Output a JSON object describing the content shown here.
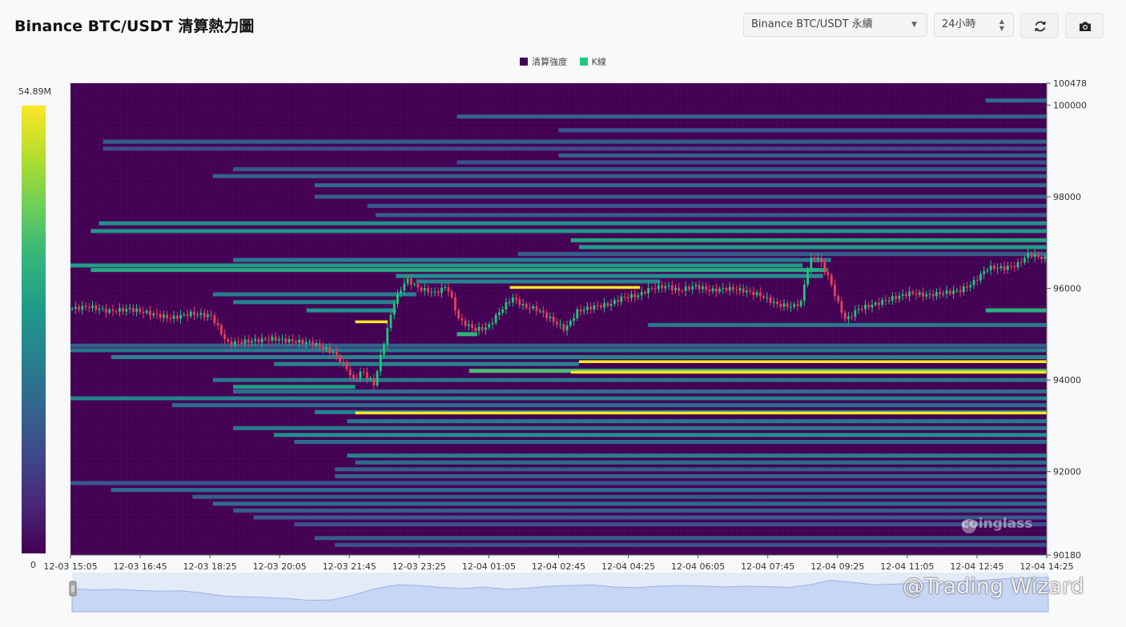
{
  "header": {
    "title": "Binance BTC/USDT 清算熱力圖",
    "symbol_select": "Binance BTC/USDT 永續",
    "range_select": "24小時",
    "refresh_icon": "refresh-icon",
    "camera_icon": "camera-icon"
  },
  "legend": [
    {
      "label": "清算強度",
      "color": "#440154"
    },
    {
      "label": "K線",
      "color": "#1fc87c"
    }
  ],
  "colorbar": {
    "max_label": "54.89M",
    "min_label": "0"
  },
  "watermarks": {
    "brand": "coinglass",
    "credit": "@Trading Wizard"
  },
  "chart_data": {
    "type": "heatmap",
    "y_axis": {
      "min": 90180,
      "max": 100478,
      "ticks": [
        100478,
        100000,
        98000,
        96000,
        94000,
        92000,
        90180
      ]
    },
    "x_ticks": [
      "12-03 15:05",
      "12-03 16:45",
      "12-03 18:25",
      "12-03 20:05",
      "12-03 21:45",
      "12-03 23:25",
      "12-04 01:05",
      "12-04 02:45",
      "12-04 04:25",
      "12-04 06:05",
      "12-04 07:45",
      "12-04 09:25",
      "12-04 11:05",
      "12-04 12:45",
      "12-04 14:25"
    ],
    "time_range_hours": [
      0,
      24
    ],
    "color_scale": {
      "min": 0,
      "max": 54890000,
      "palette": "viridis"
    },
    "bands": [
      {
        "price": 100100,
        "start_h": 22.5,
        "end_h": 24,
        "intensity": 0.35
      },
      {
        "price": 99750,
        "start_h": 9.5,
        "end_h": 24,
        "intensity": 0.32
      },
      {
        "price": 99450,
        "start_h": 12.0,
        "end_h": 24,
        "intensity": 0.28
      },
      {
        "price": 99200,
        "start_h": 0.8,
        "end_h": 24,
        "intensity": 0.3
      },
      {
        "price": 99050,
        "start_h": 0.8,
        "end_h": 24,
        "intensity": 0.24
      },
      {
        "price": 98900,
        "start_h": 12.0,
        "end_h": 24,
        "intensity": 0.3
      },
      {
        "price": 98750,
        "start_h": 9.5,
        "end_h": 24,
        "intensity": 0.25
      },
      {
        "price": 98600,
        "start_h": 4.0,
        "end_h": 24,
        "intensity": 0.28
      },
      {
        "price": 98450,
        "start_h": 3.5,
        "end_h": 24,
        "intensity": 0.32
      },
      {
        "price": 98250,
        "start_h": 6.0,
        "end_h": 24,
        "intensity": 0.35
      },
      {
        "price": 98000,
        "start_h": 6.0,
        "end_h": 24,
        "intensity": 0.3
      },
      {
        "price": 97800,
        "start_h": 7.3,
        "end_h": 24,
        "intensity": 0.28
      },
      {
        "price": 97600,
        "start_h": 7.5,
        "end_h": 24,
        "intensity": 0.3
      },
      {
        "price": 97420,
        "start_h": 0.7,
        "end_h": 24,
        "intensity": 0.5
      },
      {
        "price": 97250,
        "start_h": 0.5,
        "end_h": 24,
        "intensity": 0.52
      },
      {
        "price": 97050,
        "start_h": 12.3,
        "end_h": 24,
        "intensity": 0.58
      },
      {
        "price": 96900,
        "start_h": 12.5,
        "end_h": 24,
        "intensity": 0.55
      },
      {
        "price": 96750,
        "start_h": 11.0,
        "end_h": 24,
        "intensity": 0.3
      },
      {
        "price": 96620,
        "start_h": 4.0,
        "end_h": 18.7,
        "intensity": 0.42
      },
      {
        "price": 96500,
        "start_h": 0.0,
        "end_h": 18.0,
        "intensity": 0.55
      },
      {
        "price": 96400,
        "start_h": 0.5,
        "end_h": 18.6,
        "intensity": 0.6
      },
      {
        "price": 96270,
        "start_h": 8.0,
        "end_h": 18.5,
        "intensity": 0.5
      },
      {
        "price": 96150,
        "start_h": 8.5,
        "end_h": 14.5,
        "intensity": 0.45
      },
      {
        "price": 96020,
        "start_h": 10.8,
        "end_h": 14.0,
        "intensity": 1.0
      },
      {
        "price": 95870,
        "start_h": 3.5,
        "end_h": 8.5,
        "intensity": 0.42
      },
      {
        "price": 95700,
        "start_h": 4.0,
        "end_h": 8.0,
        "intensity": 0.45
      },
      {
        "price": 95520,
        "start_h": 5.8,
        "end_h": 8.0,
        "intensity": 0.5
      },
      {
        "price": 95520,
        "start_h": 22.5,
        "end_h": 24,
        "intensity": 0.62
      },
      {
        "price": 95270,
        "start_h": 7.0,
        "end_h": 7.8,
        "intensity": 1.0
      },
      {
        "price": 95200,
        "start_h": 14.2,
        "end_h": 24,
        "intensity": 0.4
      },
      {
        "price": 95000,
        "start_h": 9.5,
        "end_h": 10.0,
        "intensity": 0.65
      },
      {
        "price": 94750,
        "start_h": 0.0,
        "end_h": 24,
        "intensity": 0.3
      },
      {
        "price": 94650,
        "start_h": 0.0,
        "end_h": 24,
        "intensity": 0.4
      },
      {
        "price": 94500,
        "start_h": 1.0,
        "end_h": 24,
        "intensity": 0.45
      },
      {
        "price": 94400,
        "start_h": 12.5,
        "end_h": 24,
        "intensity": 1.0
      },
      {
        "price": 94350,
        "start_h": 5.0,
        "end_h": 12.5,
        "intensity": 0.45
      },
      {
        "price": 94200,
        "start_h": 9.8,
        "end_h": 24,
        "intensity": 0.7
      },
      {
        "price": 94170,
        "start_h": 12.3,
        "end_h": 24,
        "intensity": 1.0
      },
      {
        "price": 94000,
        "start_h": 3.5,
        "end_h": 24,
        "intensity": 0.4
      },
      {
        "price": 93850,
        "start_h": 4.0,
        "end_h": 7.0,
        "intensity": 0.55
      },
      {
        "price": 93750,
        "start_h": 4.0,
        "end_h": 24,
        "intensity": 0.35
      },
      {
        "price": 93600,
        "start_h": 0.0,
        "end_h": 24,
        "intensity": 0.45
      },
      {
        "price": 93450,
        "start_h": 2.5,
        "end_h": 24,
        "intensity": 0.35
      },
      {
        "price": 93300,
        "start_h": 6.0,
        "end_h": 24,
        "intensity": 0.45
      },
      {
        "price": 93280,
        "start_h": 7.0,
        "end_h": 24,
        "intensity": 1.0
      },
      {
        "price": 93100,
        "start_h": 6.8,
        "end_h": 24,
        "intensity": 0.4
      },
      {
        "price": 92950,
        "start_h": 4.0,
        "end_h": 24,
        "intensity": 0.42
      },
      {
        "price": 92800,
        "start_h": 5.0,
        "end_h": 24,
        "intensity": 0.5
      },
      {
        "price": 92650,
        "start_h": 5.5,
        "end_h": 24,
        "intensity": 0.35
      },
      {
        "price": 92350,
        "start_h": 6.8,
        "end_h": 24,
        "intensity": 0.45
      },
      {
        "price": 92200,
        "start_h": 7.0,
        "end_h": 24,
        "intensity": 0.35
      },
      {
        "price": 92050,
        "start_h": 6.5,
        "end_h": 24,
        "intensity": 0.3
      },
      {
        "price": 91900,
        "start_h": 6.5,
        "end_h": 24,
        "intensity": 0.32
      },
      {
        "price": 91750,
        "start_h": 0.0,
        "end_h": 24,
        "intensity": 0.28
      },
      {
        "price": 91600,
        "start_h": 1.0,
        "end_h": 24,
        "intensity": 0.35
      },
      {
        "price": 91450,
        "start_h": 3.0,
        "end_h": 24,
        "intensity": 0.3
      },
      {
        "price": 91300,
        "start_h": 3.5,
        "end_h": 24,
        "intensity": 0.35
      },
      {
        "price": 91150,
        "start_h": 4.0,
        "end_h": 24,
        "intensity": 0.3
      },
      {
        "price": 91000,
        "start_h": 4.5,
        "end_h": 24,
        "intensity": 0.28
      },
      {
        "price": 90850,
        "start_h": 5.5,
        "end_h": 24,
        "intensity": 0.25
      },
      {
        "price": 90550,
        "start_h": 6.0,
        "end_h": 24,
        "intensity": 0.3
      },
      {
        "price": 90400,
        "start_h": 6.5,
        "end_h": 24,
        "intensity": 0.25
      }
    ],
    "price_path": [
      {
        "h": 0.0,
        "p": 95550
      },
      {
        "h": 0.5,
        "p": 95600
      },
      {
        "h": 1.0,
        "p": 95500
      },
      {
        "h": 1.5,
        "p": 95550
      },
      {
        "h": 2.0,
        "p": 95450
      },
      {
        "h": 2.5,
        "p": 95350
      },
      {
        "h": 3.0,
        "p": 95450
      },
      {
        "h": 3.5,
        "p": 95400
      },
      {
        "h": 3.7,
        "p": 95100
      },
      {
        "h": 3.9,
        "p": 94800
      },
      {
        "h": 4.5,
        "p": 94850
      },
      {
        "h": 5.0,
        "p": 94900
      },
      {
        "h": 5.5,
        "p": 94850
      },
      {
        "h": 6.0,
        "p": 94800
      },
      {
        "h": 6.5,
        "p": 94600
      },
      {
        "h": 6.8,
        "p": 94300
      },
      {
        "h": 7.0,
        "p": 94000
      },
      {
        "h": 7.2,
        "p": 94200
      },
      {
        "h": 7.5,
        "p": 93900
      },
      {
        "h": 7.8,
        "p": 95000
      },
      {
        "h": 8.0,
        "p": 95700
      },
      {
        "h": 8.3,
        "p": 96200
      },
      {
        "h": 8.6,
        "p": 96000
      },
      {
        "h": 9.0,
        "p": 95900
      },
      {
        "h": 9.3,
        "p": 96050
      },
      {
        "h": 9.6,
        "p": 95300
      },
      {
        "h": 10.0,
        "p": 95100
      },
      {
        "h": 10.3,
        "p": 95150
      },
      {
        "h": 10.6,
        "p": 95500
      },
      {
        "h": 10.9,
        "p": 95800
      },
      {
        "h": 11.2,
        "p": 95600
      },
      {
        "h": 11.5,
        "p": 95550
      },
      {
        "h": 11.9,
        "p": 95300
      },
      {
        "h": 12.2,
        "p": 95100
      },
      {
        "h": 12.5,
        "p": 95500
      },
      {
        "h": 12.9,
        "p": 95600
      },
      {
        "h": 13.3,
        "p": 95650
      },
      {
        "h": 13.6,
        "p": 95800
      },
      {
        "h": 14.0,
        "p": 95850
      },
      {
        "h": 14.3,
        "p": 96000
      },
      {
        "h": 14.7,
        "p": 96050
      },
      {
        "h": 15.0,
        "p": 95950
      },
      {
        "h": 15.4,
        "p": 96050
      },
      {
        "h": 15.8,
        "p": 95950
      },
      {
        "h": 16.2,
        "p": 96000
      },
      {
        "h": 16.6,
        "p": 95950
      },
      {
        "h": 17.0,
        "p": 95850
      },
      {
        "h": 17.4,
        "p": 95650
      },
      {
        "h": 17.8,
        "p": 95600
      },
      {
        "h": 18.0,
        "p": 95700
      },
      {
        "h": 18.2,
        "p": 96600
      },
      {
        "h": 18.4,
        "p": 96700
      },
      {
        "h": 18.7,
        "p": 96200
      },
      {
        "h": 18.9,
        "p": 95700
      },
      {
        "h": 19.1,
        "p": 95300
      },
      {
        "h": 19.4,
        "p": 95550
      },
      {
        "h": 19.8,
        "p": 95650
      },
      {
        "h": 20.3,
        "p": 95800
      },
      {
        "h": 20.7,
        "p": 95900
      },
      {
        "h": 21.1,
        "p": 95850
      },
      {
        "h": 21.5,
        "p": 95900
      },
      {
        "h": 21.9,
        "p": 95950
      },
      {
        "h": 22.2,
        "p": 96100
      },
      {
        "h": 22.6,
        "p": 96450
      },
      {
        "h": 23.0,
        "p": 96450
      },
      {
        "h": 23.3,
        "p": 96500
      },
      {
        "h": 23.6,
        "p": 96750
      },
      {
        "h": 24.0,
        "p": 96650
      }
    ],
    "volume_series": [
      0.62,
      0.58,
      0.6,
      0.57,
      0.55,
      0.56,
      0.5,
      0.42,
      0.4,
      0.38,
      0.35,
      0.3,
      0.32,
      0.45,
      0.62,
      0.72,
      0.7,
      0.65,
      0.62,
      0.66,
      0.6,
      0.63,
      0.68,
      0.7,
      0.72,
      0.66,
      0.64,
      0.68,
      0.7,
      0.69,
      0.66,
      0.68,
      0.67,
      0.65,
      0.72,
      0.84,
      0.78,
      0.72,
      0.74,
      0.76,
      0.78,
      0.8,
      0.84,
      0.88,
      0.9,
      0.92
    ]
  }
}
